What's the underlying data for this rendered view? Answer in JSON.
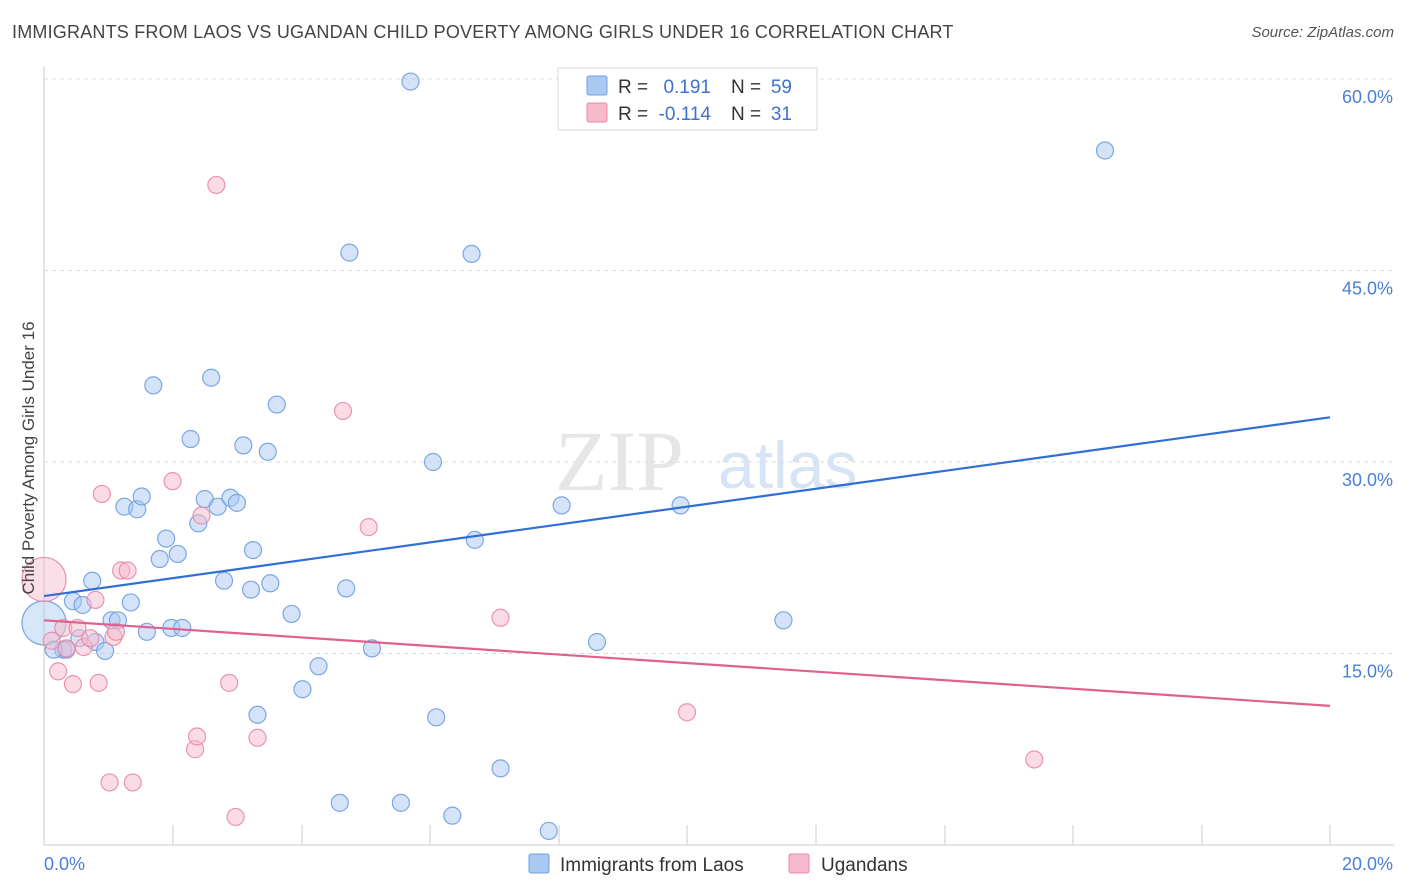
{
  "header": {
    "title": "IMMIGRANTS FROM LAOS VS UGANDAN CHILD POVERTY AMONG GIRLS UNDER 16 CORRELATION CHART",
    "source": "Source: ZipAtlas.com"
  },
  "watermark": {
    "zip": "ZIP",
    "atlas": "atlas"
  },
  "legend": {
    "rows": [
      {
        "r_label": "R =",
        "r_value": "0.191",
        "n_label": "N =",
        "n_value": "59",
        "color": "#a9c8f2"
      },
      {
        "r_label": "R =",
        "r_value": "-0.114",
        "n_label": "N =",
        "n_value": "31",
        "color": "#f7b9cc"
      }
    ]
  },
  "bottom_legend": {
    "items": [
      {
        "label": "Immigrants from Laos",
        "color": "#a9c8f2"
      },
      {
        "label": "Ugandans",
        "color": "#f7b9cc"
      }
    ]
  },
  "chart_data": {
    "type": "scatter",
    "title": "IMMIGRANTS FROM LAOS VS UGANDAN CHILD POVERTY AMONG GIRLS UNDER 16 CORRELATION CHART",
    "xlabel": "",
    "ylabel": "Child Poverty Among Girls Under 16",
    "xlim": [
      0,
      20
    ],
    "ylim": [
      0,
      60
    ],
    "x_tick_labels": [
      "0.0%",
      "20.0%"
    ],
    "y_ticks": [
      15,
      30,
      45,
      60
    ],
    "y_tick_labels": [
      "15.0%",
      "30.0%",
      "45.0%",
      "60.0%"
    ],
    "grid": true,
    "series": [
      {
        "name": "Immigrants from Laos",
        "color": "#a9c8f2",
        "stroke": "#6f9fe0",
        "points": [
          [
            0.0,
            17.4
          ],
          [
            0.3,
            15.3
          ],
          [
            0.35,
            15.3
          ],
          [
            0.45,
            19.1
          ],
          [
            0.55,
            16.2
          ],
          [
            0.6,
            18.8
          ],
          [
            0.75,
            20.7
          ],
          [
            0.8,
            15.9
          ],
          [
            0.95,
            15.2
          ],
          [
            1.05,
            17.6
          ],
          [
            1.15,
            17.6
          ],
          [
            1.25,
            26.5
          ],
          [
            1.35,
            19.0
          ],
          [
            1.45,
            26.3
          ],
          [
            1.52,
            27.3
          ],
          [
            1.6,
            16.7
          ],
          [
            1.7,
            36.0
          ],
          [
            1.8,
            22.4
          ],
          [
            1.9,
            24.0
          ],
          [
            1.98,
            17.0
          ],
          [
            2.08,
            22.8
          ],
          [
            2.15,
            17.0
          ],
          [
            2.28,
            31.8
          ],
          [
            2.4,
            25.2
          ],
          [
            2.5,
            27.1
          ],
          [
            2.6,
            36.6
          ],
          [
            2.7,
            26.5
          ],
          [
            2.8,
            20.7
          ],
          [
            2.9,
            27.2
          ],
          [
            3.0,
            26.8
          ],
          [
            3.1,
            31.3
          ],
          [
            3.22,
            20.0
          ],
          [
            3.25,
            23.1
          ],
          [
            3.32,
            10.2
          ],
          [
            3.48,
            30.8
          ],
          [
            3.52,
            20.5
          ],
          [
            3.62,
            34.5
          ],
          [
            3.85,
            18.1
          ],
          [
            4.02,
            12.2
          ],
          [
            4.27,
            14.0
          ],
          [
            4.6,
            3.3
          ],
          [
            4.7,
            20.1
          ],
          [
            4.75,
            46.4
          ],
          [
            5.1,
            15.4
          ],
          [
            5.55,
            3.3
          ],
          [
            5.7,
            59.8
          ],
          [
            6.05,
            30.0
          ],
          [
            6.1,
            10.0
          ],
          [
            6.35,
            2.3
          ],
          [
            6.65,
            46.3
          ],
          [
            6.7,
            23.9
          ],
          [
            7.1,
            6.0
          ],
          [
            7.85,
            1.1
          ],
          [
            8.05,
            26.6
          ],
          [
            8.6,
            15.9
          ],
          [
            9.9,
            26.6
          ],
          [
            11.5,
            17.6
          ],
          [
            16.5,
            54.4
          ],
          [
            0.15,
            15.3
          ]
        ],
        "trend": {
          "x": [
            0,
            20
          ],
          "y": [
            19.5,
            33.5
          ]
        }
      },
      {
        "name": "Ugandans",
        "color": "#f7b9cc",
        "stroke": "#e889a8",
        "points": [
          [
            0.0,
            20.8
          ],
          [
            0.12,
            16.0
          ],
          [
            0.22,
            13.6
          ],
          [
            0.3,
            17.0
          ],
          [
            0.45,
            12.6
          ],
          [
            0.52,
            17.0
          ],
          [
            0.62,
            15.5
          ],
          [
            0.72,
            16.2
          ],
          [
            0.8,
            19.2
          ],
          [
            0.85,
            12.7
          ],
          [
            0.9,
            27.5
          ],
          [
            1.02,
            4.9
          ],
          [
            1.08,
            16.3
          ],
          [
            1.12,
            16.7
          ],
          [
            1.2,
            21.5
          ],
          [
            1.3,
            21.5
          ],
          [
            1.38,
            4.9
          ],
          [
            2.0,
            28.5
          ],
          [
            2.35,
            7.5
          ],
          [
            2.38,
            8.5
          ],
          [
            2.45,
            25.8
          ],
          [
            2.68,
            51.7
          ],
          [
            2.88,
            12.7
          ],
          [
            2.98,
            2.2
          ],
          [
            3.32,
            8.4
          ],
          [
            4.65,
            34.0
          ],
          [
            5.05,
            24.9
          ],
          [
            7.1,
            17.8
          ],
          [
            10.0,
            10.4
          ],
          [
            15.4,
            6.7
          ],
          [
            0.35,
            15.4
          ]
        ],
        "trend": {
          "x": [
            0,
            20
          ],
          "y": [
            17.6,
            10.9
          ]
        }
      }
    ]
  }
}
